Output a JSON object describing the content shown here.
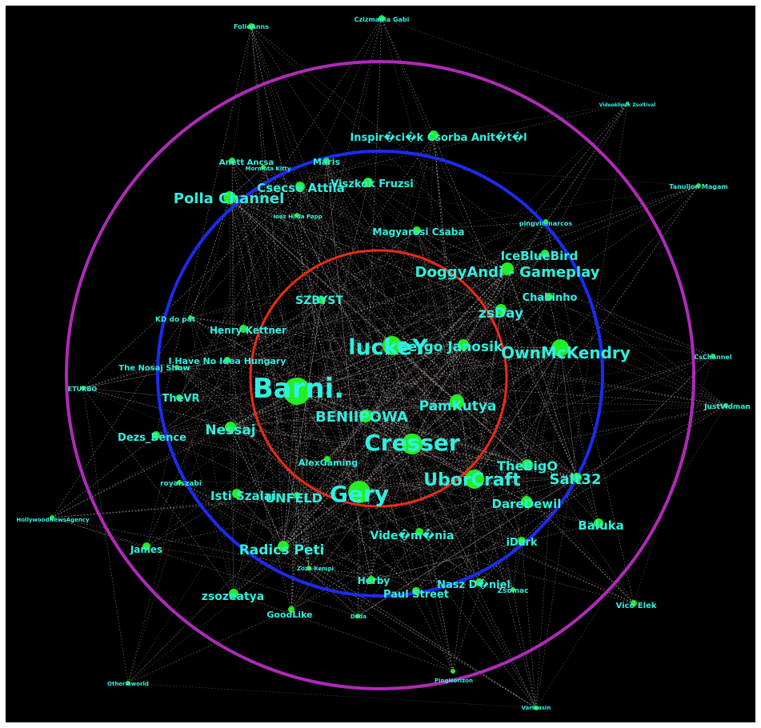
{
  "colors": {
    "background": "#000000",
    "node": "#22ee22",
    "label": "#2ef0e0",
    "edge": "#b9a8a8",
    "ring_outer": "#b02ab8",
    "ring_middle": "#1a2cf0",
    "ring_inner": "#ee2a14"
  },
  "nodes": [
    {
      "id": "barni",
      "label": "Barni."
    },
    {
      "id": "cresser",
      "label": "Cresser"
    },
    {
      "id": "gery",
      "label": "Gery"
    },
    {
      "id": "luckey",
      "label": "luckeY"
    },
    {
      "id": "uborcraft",
      "label": "UborCraft"
    },
    {
      "id": "ownmckendry",
      "label": "OwnMcKendry"
    },
    {
      "id": "benipowa",
      "label": "BENIIPOWA"
    },
    {
      "id": "pamkutya",
      "label": "PamKutya"
    },
    {
      "id": "doggyandi",
      "label": "DoggyAndi - Gameplay"
    },
    {
      "id": "pollachannel",
      "label": "Polla Channel"
    },
    {
      "id": "salt32",
      "label": "Salt32"
    },
    {
      "id": "thebigo",
      "label": "TheBigO"
    },
    {
      "id": "gergojanosik",
      "label": "Gergo Janosik"
    },
    {
      "id": "zsday",
      "label": "zsDay"
    },
    {
      "id": "iceblue",
      "label": "IceBlueBird"
    },
    {
      "id": "radicspeti",
      "label": "Radics Peti"
    },
    {
      "id": "nessaj",
      "label": "Nessaj"
    },
    {
      "id": "unfeld",
      "label": "UNFELD"
    },
    {
      "id": "istiszalai",
      "label": "Isti Szalai"
    },
    {
      "id": "daredewil",
      "label": "DareDewil"
    },
    {
      "id": "baluka",
      "label": "Baluka"
    },
    {
      "id": "videomania",
      "label": "Vide�m�nia"
    },
    {
      "id": "csecse",
      "label": "Csecse Attila"
    },
    {
      "id": "zsozeatya",
      "label": "zsozeatya"
    },
    {
      "id": "inspi",
      "label": "Inspir�ci�k Csorba Anit�t�l"
    },
    {
      "id": "viszkok",
      "label": "Viszkok Fruzsi"
    },
    {
      "id": "chabinho",
      "label": "Chabinho"
    },
    {
      "id": "szbyst",
      "label": "SZBYST"
    },
    {
      "id": "idark",
      "label": "iDark"
    },
    {
      "id": "nasz",
      "label": "Nasz D�niel"
    },
    {
      "id": "paulstreet",
      "label": "Paul Street"
    },
    {
      "id": "dezsbence",
      "label": "Dezs_Bence"
    },
    {
      "id": "magyarosi",
      "label": "Magyarosi Csaba"
    },
    {
      "id": "henry",
      "label": "Henry Kettner"
    },
    {
      "id": "alexgaming",
      "label": "AlexGaming"
    },
    {
      "id": "thevr",
      "label": "TheVR"
    },
    {
      "id": "herby",
      "label": "Herby"
    },
    {
      "id": "goodlike",
      "label": "GoodLike"
    },
    {
      "id": "james",
      "label": "James"
    },
    {
      "id": "vicoelek",
      "label": "Vico Elek"
    },
    {
      "id": "ihavenoidea",
      "label": "I Have No Idea Hungary"
    },
    {
      "id": "nosaj",
      "label": "The Nosaj Show"
    },
    {
      "id": "maris",
      "label": "Maris"
    },
    {
      "id": "anett",
      "label": "Anett Ancsa"
    },
    {
      "id": "kddopat",
      "label": "KD do pat"
    },
    {
      "id": "csc",
      "label": "CsChannel"
    },
    {
      "id": "justvidman",
      "label": "JustVidman"
    },
    {
      "id": "zsomac",
      "label": "Zsomac"
    },
    {
      "id": "pingvin",
      "label": "pingvinmarcos"
    },
    {
      "id": "tanuljon",
      "label": "Tanuljon Magam"
    },
    {
      "id": "folio",
      "label": "FolioAnns"
    },
    {
      "id": "czizmadia",
      "label": "Czizmadia Gabi"
    },
    {
      "id": "eturbo",
      "label": "ETURBO"
    },
    {
      "id": "royalszabi",
      "label": "royalszabi"
    },
    {
      "id": "hollywood",
      "label": "HollywoodNewsAgency"
    },
    {
      "id": "othermworld",
      "label": "Othermworld"
    },
    {
      "id": "pinghorizon",
      "label": "PingHorizon"
    },
    {
      "id": "varmasin",
      "label": "Varmasin"
    },
    {
      "id": "deda",
      "label": "Deda"
    },
    {
      "id": "zozo",
      "label": "Zozo Kempi"
    },
    {
      "id": "mormota",
      "label": "Mormota Kitty"
    },
    {
      "id": "inez",
      "label": "Inez Hilda Papp"
    },
    {
      "id": "videoklip",
      "label": "Videoklipek Zsoltival"
    }
  ]
}
